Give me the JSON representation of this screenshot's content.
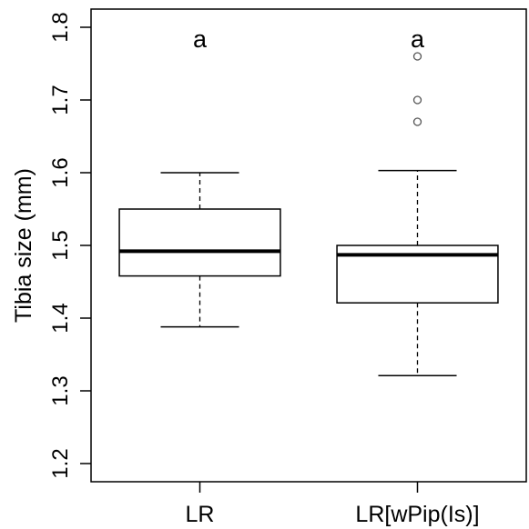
{
  "chart_data": {
    "type": "boxplot",
    "title": "",
    "xlabel": "",
    "ylabel": "Tibia size (mm)",
    "ylim": [
      1.175,
      1.825
    ],
    "yticks": [
      1.2,
      1.3,
      1.4,
      1.5,
      1.6,
      1.7,
      1.8
    ],
    "ytick_labels": [
      "1.2",
      "1.3",
      "1.4",
      "1.5",
      "1.6",
      "1.7",
      "1.8"
    ],
    "categories": [
      "LR",
      "LR[wPip(Is)]"
    ],
    "boxes": [
      {
        "category": "LR",
        "whisker_low": 1.388,
        "q1": 1.458,
        "median": 1.492,
        "q3": 1.55,
        "whisker_high": 1.6,
        "outliers": [],
        "letter": "a"
      },
      {
        "category": "LR[wPip(Is)]",
        "whisker_low": 1.321,
        "q1": 1.421,
        "median": 1.487,
        "q3": 1.5,
        "whisker_high": 1.603,
        "outliers": [
          1.76,
          1.7,
          1.67
        ],
        "letter": "a"
      }
    ],
    "colors": {
      "stroke": "#000000",
      "box_fill": "#ffffff",
      "outlier": "#555555"
    },
    "grid": false,
    "legend": "none"
  }
}
